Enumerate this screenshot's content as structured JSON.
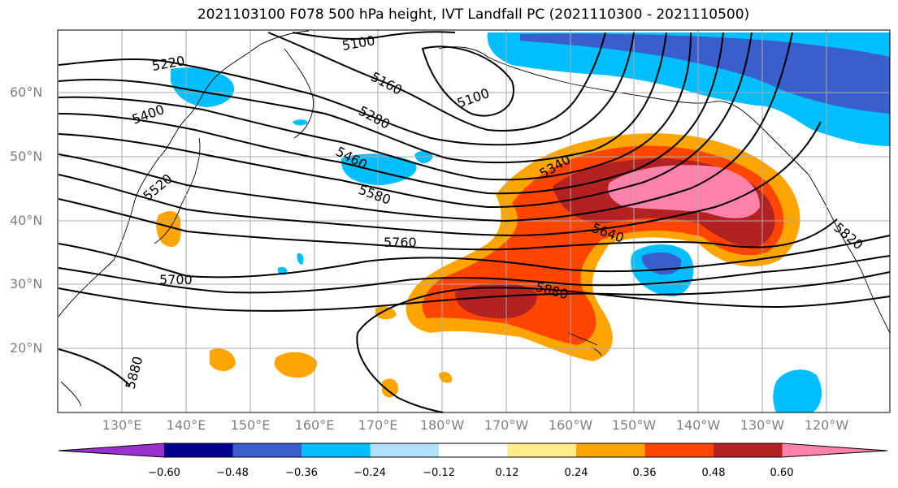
{
  "title": "2021103100 F078 500 hPa height, IVT Landfall PC (2021110300 - 2021110500)",
  "lat_labels": [
    "60°N",
    "50°N",
    "40°N",
    "30°N",
    "20°N"
  ],
  "lon_labels": [
    "130°E",
    "140°E",
    "150°E",
    "160°E",
    "170°E",
    "180°W",
    "170°W",
    "160°W",
    "150°W",
    "140°W",
    "130°W",
    "120°W"
  ],
  "contour_labels": [
    "5100",
    "5100",
    "5160",
    "5220",
    "5280",
    "5340",
    "5400",
    "5460",
    "5520",
    "5580",
    "5640",
    "5700",
    "5760",
    "5820",
    "5880",
    "5880"
  ],
  "colorbar": {
    "tick_labels": [
      "−0.60",
      "−0.48",
      "−0.36",
      "−0.24",
      "−0.12",
      "0.12",
      "0.24",
      "0.36",
      "0.48",
      "0.60"
    ],
    "colors": [
      "#9932cc",
      "#00008b",
      "#3a5fcd",
      "#00bfff",
      "#b0e2ff",
      "#ffffff",
      "#ffec8b",
      "#ffa500",
      "#ff4500",
      "#b22222",
      "#ff82ab"
    ]
  },
  "colors": {
    "land_outline": "#000000",
    "grid": "#a9a9a9",
    "contour": "#000000"
  }
}
